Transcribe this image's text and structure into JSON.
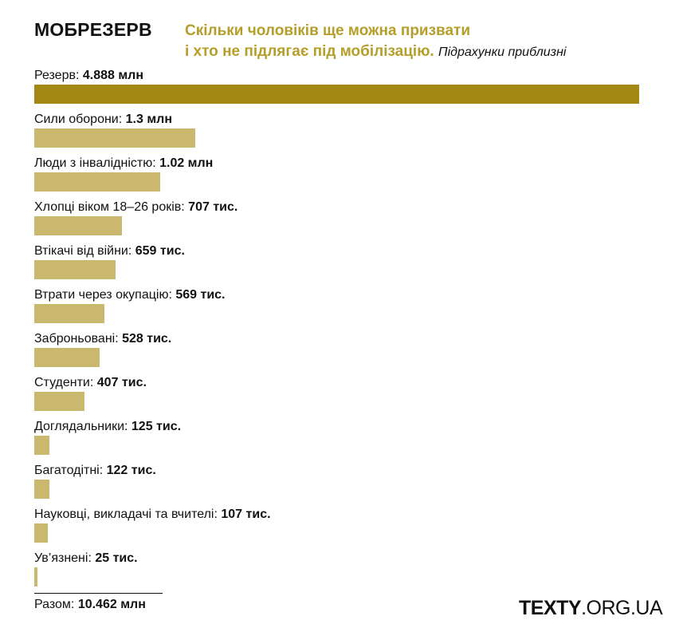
{
  "header": {
    "brand": "МОБРЕЗЕРВ",
    "subtitle_line1": "Скільки чоловіків ще можна призвати",
    "subtitle_line2": "і хто не підлягає під мобілізацію.",
    "note": "Підрахунки приблизні"
  },
  "chart_data": {
    "type": "bar",
    "orientation": "horizontal",
    "title": "Скільки чоловіків ще можна призвати і хто не підлягає під мобілізацію.",
    "categories": [
      "Резерв",
      "Сили оборони",
      "Люди з інвалідністю",
      "Хлопці віком 18–26 років",
      "Втікачі від війни",
      "Втрати через окупацію",
      "Заброньовані",
      "Студенти",
      "Доглядальники",
      "Багатодітні",
      "Науковці, викладачі та вчителі",
      "Ув’язнені"
    ],
    "value_labels": [
      "4.888 млн",
      "1.3 млн",
      "1.02 млн",
      "707 тис.",
      "659 тис.",
      "569 тис.",
      "528 тис.",
      "407 тис.",
      "125 тис.",
      "122 тис.",
      "107 тис.",
      "25 тис."
    ],
    "values": [
      4888,
      1300,
      1020,
      707,
      659,
      569,
      528,
      407,
      125,
      122,
      107,
      25
    ],
    "xlim": [
      0,
      4888
    ],
    "colors": {
      "highlight": "#a38814",
      "bar": "#cbb86f",
      "subtitle": "#b59e2a"
    },
    "grid": false,
    "legend": "none"
  },
  "total": {
    "label": "Разом:",
    "value": "10.462 млн"
  },
  "source": {
    "bold": "TEXTY",
    "rest": ".ORG.UA"
  }
}
